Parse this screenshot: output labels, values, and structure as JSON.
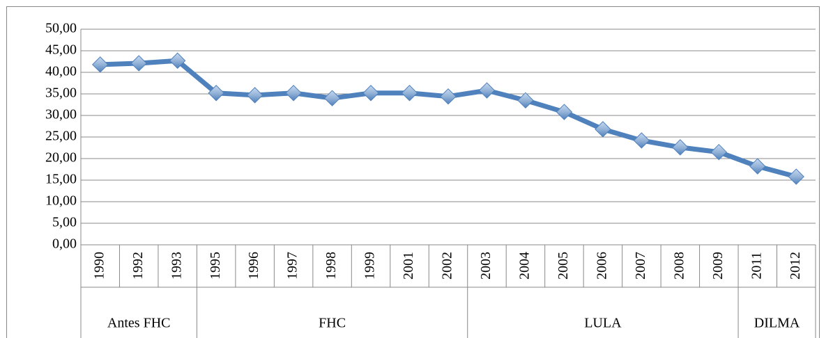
{
  "chart_data": {
    "type": "line",
    "groups": [
      {
        "label": "Antes FHC",
        "categories": [
          "1990",
          "1992",
          "1993"
        ]
      },
      {
        "label": "FHC",
        "categories": [
          "1995",
          "1996",
          "1997",
          "1998",
          "1999",
          "2001",
          "2002"
        ]
      },
      {
        "label": "LULA",
        "categories": [
          "2003",
          "2004",
          "2005",
          "2006",
          "2007",
          "2008",
          "2009"
        ]
      },
      {
        "label": "DILMA",
        "categories": [
          "2011",
          "2012"
        ]
      }
    ],
    "values": [
      41.8,
      42.1,
      42.7,
      35.2,
      34.7,
      35.2,
      34.0,
      35.2,
      35.2,
      34.4,
      35.8,
      33.5,
      30.8,
      26.8,
      24.2,
      22.6,
      21.5,
      18.2,
      15.8
    ],
    "color": "#4f81bd",
    "ylim": [
      0,
      50
    ],
    "yticks": [
      {
        "value": 0,
        "label": "0,00"
      },
      {
        "value": 5,
        "label": "5,00"
      },
      {
        "value": 10,
        "label": "10,00"
      },
      {
        "value": 15,
        "label": "15,00"
      },
      {
        "value": 20,
        "label": "20,00"
      },
      {
        "value": 25,
        "label": "25,00"
      },
      {
        "value": 30,
        "label": "30,00"
      },
      {
        "value": 35,
        "label": "35,00"
      },
      {
        "value": 40,
        "label": "40,00"
      },
      {
        "value": 45,
        "label": "45,00"
      },
      {
        "value": 50,
        "label": "50,00"
      }
    ],
    "grid": true
  }
}
